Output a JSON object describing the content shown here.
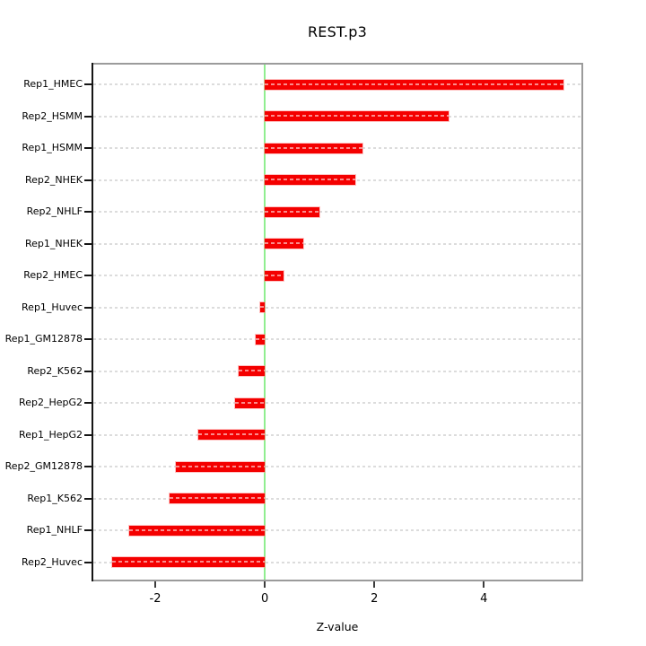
{
  "chart_data": {
    "type": "bar",
    "orientation": "horizontal",
    "title": "REST.p3",
    "xlabel": "Z-value",
    "ylabel": "",
    "categories": [
      "Rep1_HMEC",
      "Rep2_HSMM",
      "Rep1_HSMM",
      "Rep2_NHEK",
      "Rep2_NHLF",
      "Rep1_NHEK",
      "Rep2_HMEC",
      "Rep1_Huvec",
      "Rep1_GM12878",
      "Rep2_K562",
      "Rep2_HepG2",
      "Rep1_HepG2",
      "Rep2_GM12878",
      "Rep1_K562",
      "Rep1_NHLF",
      "Rep2_Huvec"
    ],
    "values": [
      5.46,
      3.35,
      1.78,
      1.65,
      0.99,
      0.71,
      0.34,
      -0.08,
      -0.17,
      -0.47,
      -0.54,
      -1.21,
      -1.62,
      -1.74,
      -2.47,
      -2.78
    ],
    "x_ticks": [
      -2,
      0,
      2,
      4
    ],
    "x_tick_labels": [
      "-2",
      "0",
      "2",
      "4"
    ],
    "xlim": [
      -3.13,
      5.78
    ],
    "grid": true,
    "grid_style": "dotted-horizontal",
    "legend": false,
    "zero_reference_line": 0
  },
  "colors": {
    "bar": "#f40000",
    "zero_line": "#90ee90",
    "grid": "#dcdcdc",
    "box_border": "#9b9b9b",
    "axis": "#151515"
  }
}
